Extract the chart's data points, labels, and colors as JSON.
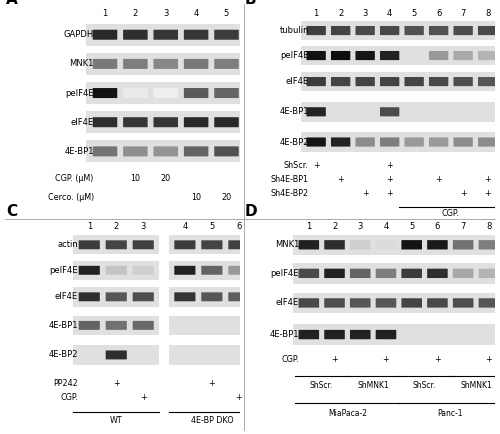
{
  "fig_width": 5.0,
  "fig_height": 4.34,
  "bg_color": "#ffffff",
  "panel_label_fontsize": 11,
  "panel_label_weight": "bold",
  "row_label_fontsize": 6.0,
  "lane_num_fontsize": 6.0,
  "annotation_fontsize": 5.8,
  "strip_bg": "#e0e0e0",
  "panel_A": {
    "rows": [
      "GAPDH",
      "MNK1",
      "peIF4E",
      "eIF4E",
      "4E-BP1"
    ],
    "ann_row1_label": "CGP. (μM)",
    "ann_row2_label": "Cerco. (μM)",
    "ann_row1": [
      "",
      "10",
      "20",
      "",
      ""
    ],
    "ann_row2": [
      "",
      "",
      "",
      "10",
      "20"
    ],
    "band_intensities": [
      [
        0.8,
        0.78,
        0.75,
        0.75,
        0.73
      ],
      [
        0.5,
        0.48,
        0.45,
        0.5,
        0.48
      ],
      [
        0.88,
        0.08,
        0.06,
        0.62,
        0.58
      ],
      [
        0.78,
        0.75,
        0.75,
        0.8,
        0.8
      ],
      [
        0.52,
        0.42,
        0.4,
        0.58,
        0.65
      ]
    ]
  },
  "panel_B": {
    "rows": [
      "tubulin",
      "peIF4E",
      "eIF4E",
      "4E-BP1",
      "4E-BP2"
    ],
    "ann_row1_label": "ShScr.",
    "ann_row2_label": "Sh4E-BP1",
    "ann_row3_label": "Sh4E-BP2",
    "ann_row1": [
      "+",
      "",
      "",
      "+",
      "",
      "",
      "",
      ""
    ],
    "ann_row2": [
      "",
      "+",
      "",
      "+",
      "",
      "+",
      "",
      "+"
    ],
    "ann_row3": [
      "",
      "",
      "+",
      "+",
      "",
      "",
      "+",
      "+"
    ],
    "cgp_lanes": [
      5,
      6,
      7,
      8
    ],
    "band_intensities": [
      [
        0.72,
        0.7,
        0.68,
        0.68,
        0.65,
        0.65,
        0.67,
        0.68
      ],
      [
        0.88,
        0.92,
        0.87,
        0.82,
        0.12,
        0.38,
        0.32,
        0.28
      ],
      [
        0.73,
        0.7,
        0.7,
        0.7,
        0.7,
        0.68,
        0.66,
        0.63
      ],
      [
        0.82,
        0.04,
        0.04,
        0.67,
        0.04,
        0.04,
        0.04,
        0.04
      ],
      [
        0.87,
        0.82,
        0.43,
        0.48,
        0.38,
        0.38,
        0.43,
        0.43
      ]
    ]
  },
  "panel_C": {
    "rows": [
      "actin",
      "peIF4E",
      "eIF4E",
      "4E-BP1",
      "4E-BP2"
    ],
    "ann_row1_label": "PP242",
    "ann_row2_label": "CGP.",
    "ann_row1": [
      "",
      "+",
      "",
      "",
      "+",
      ""
    ],
    "ann_row2": [
      "",
      "",
      "+",
      "",
      "",
      "+"
    ],
    "group1_label": "WT",
    "group2_label": "4E-BP DKO",
    "band_intensities": [
      [
        0.73,
        0.7,
        0.71,
        0.73,
        0.7,
        0.71
      ],
      [
        0.83,
        0.22,
        0.18,
        0.83,
        0.58,
        0.38
      ],
      [
        0.78,
        0.63,
        0.66,
        0.76,
        0.63,
        0.6
      ],
      [
        0.58,
        0.53,
        0.56,
        0.0,
        0.0,
        0.0
      ],
      [
        0.0,
        0.78,
        0.0,
        0.0,
        0.0,
        0.0
      ]
    ]
  },
  "panel_D": {
    "rows": [
      "MNK1",
      "peIF4E",
      "eIF4E",
      "4E-BP1"
    ],
    "ann_row1_label": "CGP.",
    "ann_row1": [
      "",
      "+",
      "",
      "+",
      "",
      "+",
      "",
      "+"
    ],
    "group_labels": [
      "ShScr.",
      "ShMNK1",
      "ShScr.",
      "ShMNK1"
    ],
    "cell_labels": [
      "MiaPaca-2",
      "Panc-1"
    ],
    "band_intensities": [
      [
        0.83,
        0.78,
        0.18,
        0.13,
        0.88,
        0.86,
        0.53,
        0.48
      ],
      [
        0.68,
        0.83,
        0.58,
        0.48,
        0.73,
        0.78,
        0.33,
        0.28
      ],
      [
        0.68,
        0.66,
        0.63,
        0.63,
        0.7,
        0.68,
        0.66,
        0.63
      ],
      [
        0.83,
        0.83,
        0.83,
        0.83,
        0.04,
        0.04,
        0.04,
        0.04
      ]
    ]
  }
}
